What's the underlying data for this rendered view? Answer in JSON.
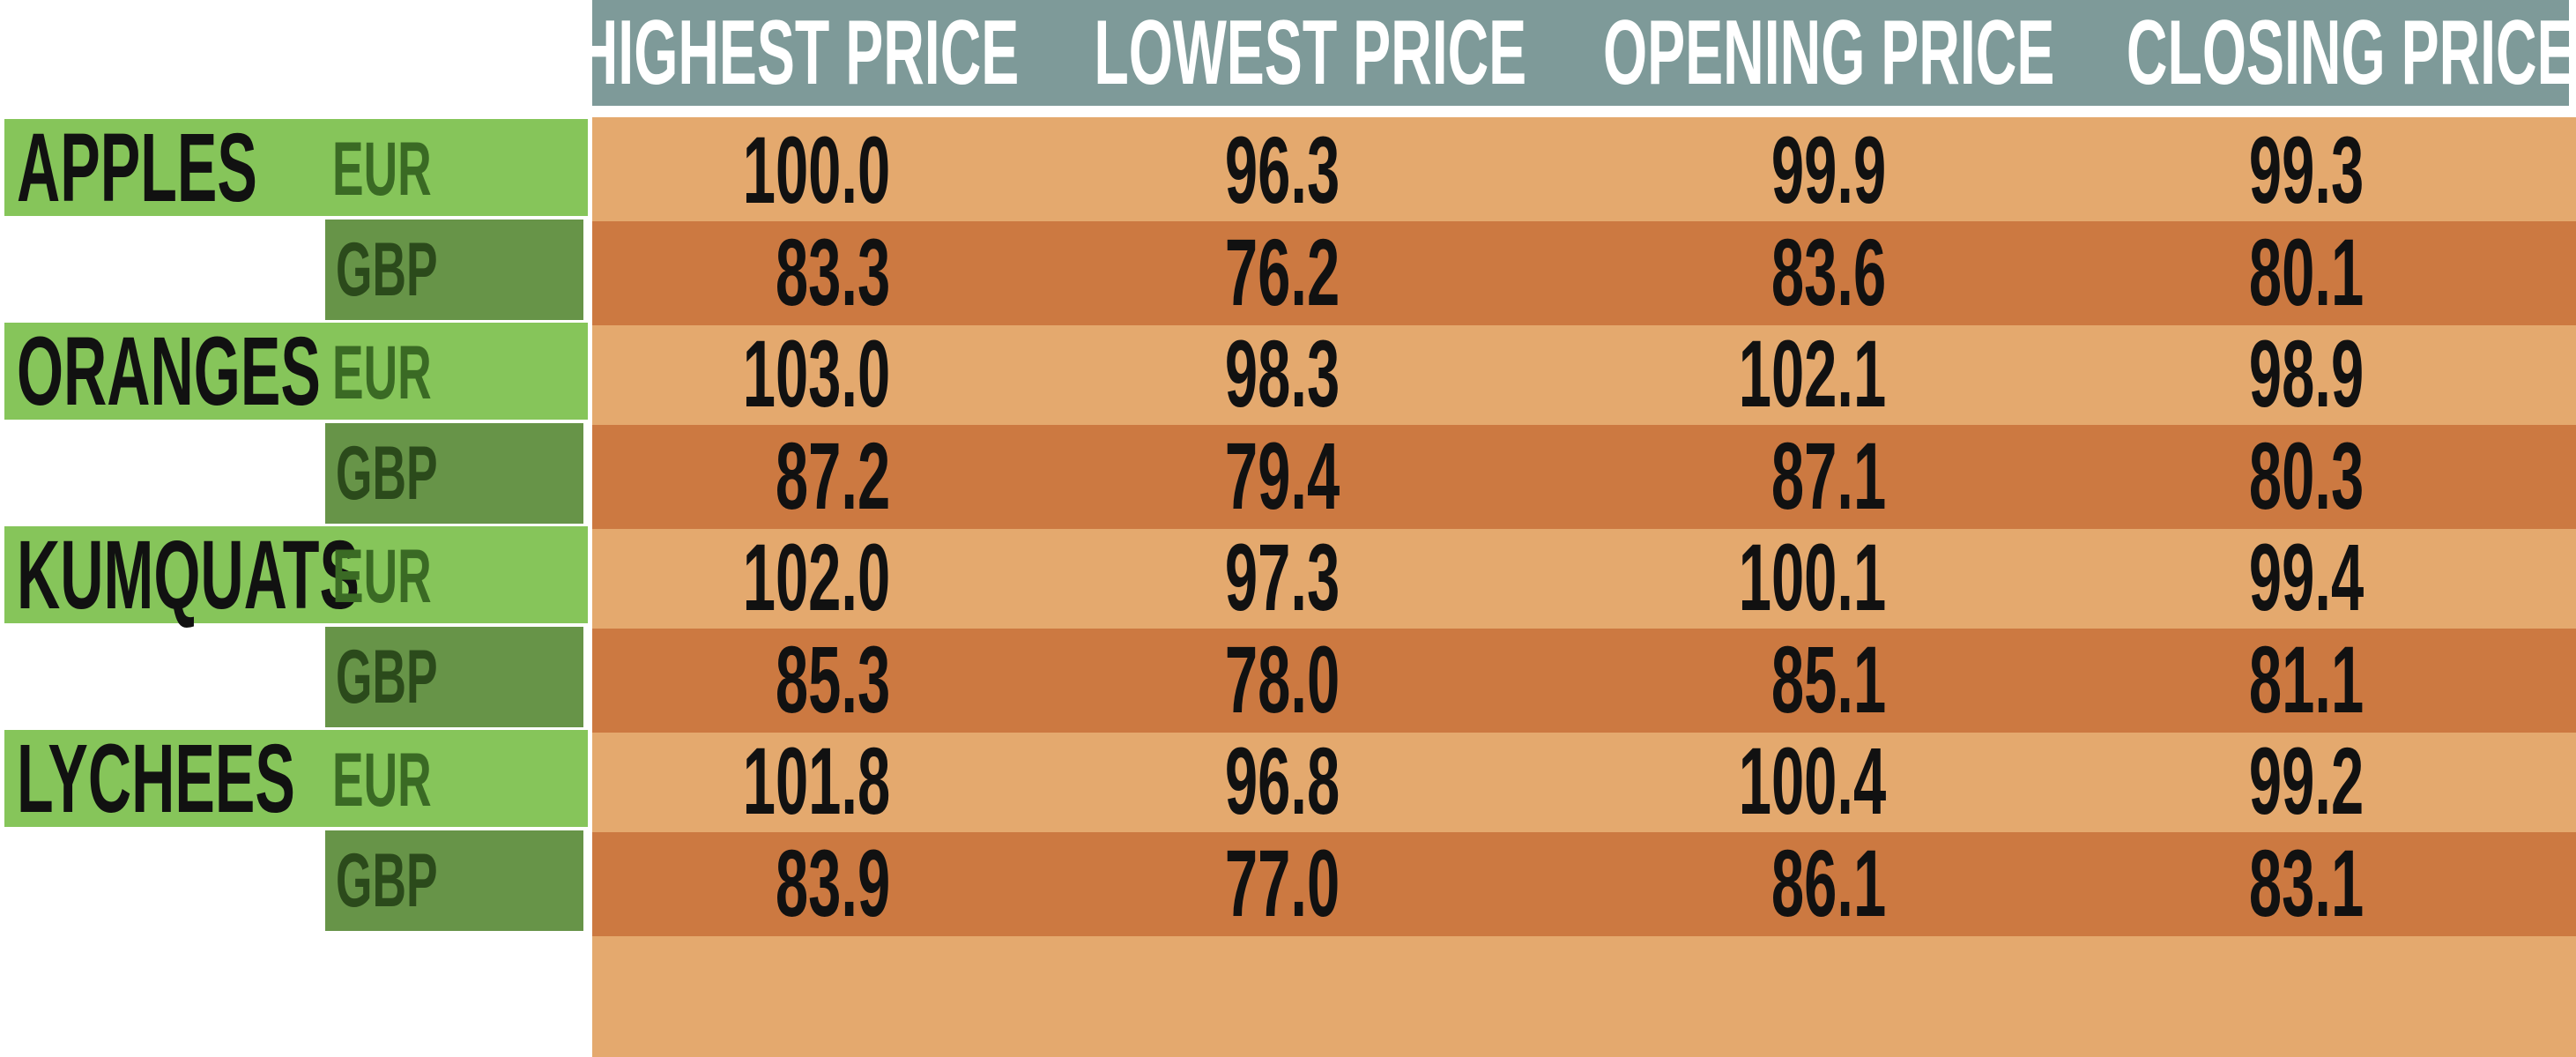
{
  "chart_data": {
    "type": "table",
    "columns": [
      "HIGHEST PRICE",
      "LOWEST PRICE",
      "OPENING PRICE",
      "CLOSING PRICE"
    ],
    "rows": [
      {
        "fruit": "APPLES",
        "currency": "EUR",
        "values": [
          "100.0",
          "96.3",
          "99.9",
          "99.3"
        ]
      },
      {
        "fruit": "",
        "currency": "GBP",
        "values": [
          "83.3",
          "76.2",
          "83.6",
          "80.1"
        ]
      },
      {
        "fruit": "ORANGES",
        "currency": "EUR",
        "values": [
          "103.0",
          "98.3",
          "102.1",
          "98.9"
        ]
      },
      {
        "fruit": "",
        "currency": "GBP",
        "values": [
          "87.2",
          "79.4",
          "87.1",
          "80.3"
        ]
      },
      {
        "fruit": "KUMQUATS",
        "currency": "EUR",
        "values": [
          "102.0",
          "97.3",
          "100.1",
          "99.4"
        ]
      },
      {
        "fruit": "",
        "currency": "GBP",
        "values": [
          "85.3",
          "78.0",
          "85.1",
          "81.1"
        ]
      },
      {
        "fruit": "LYCHEES",
        "currency": "EUR",
        "values": [
          "101.8",
          "96.8",
          "100.4",
          "99.2"
        ]
      },
      {
        "fruit": "",
        "currency": "GBP",
        "values": [
          "83.9",
          "77.0",
          "86.1",
          "83.1"
        ]
      }
    ]
  },
  "colors": {
    "header": "#7e9a99",
    "eur_row": "#e4a96e",
    "gbp_row": "#cc7941",
    "fruit_label": "#86c55a",
    "gbp_label": "#679448"
  }
}
